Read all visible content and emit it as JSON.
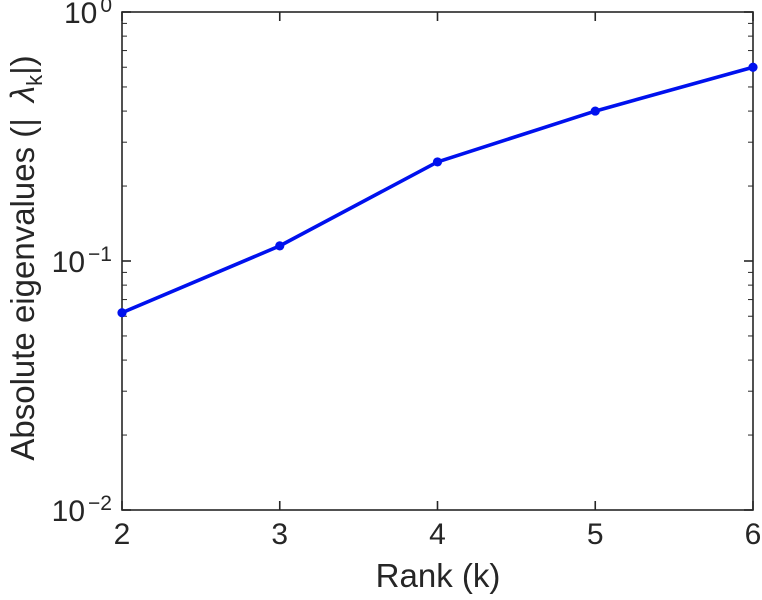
{
  "chart_data": {
    "type": "line",
    "x": [
      2,
      3,
      4,
      5,
      6
    ],
    "series": [
      {
        "name": "absolute-eigenvalues",
        "values": [
          0.062,
          0.115,
          0.25,
          0.4,
          0.6
        ]
      }
    ],
    "title": "",
    "xlabel": "Rank (k)",
    "ylabel": {
      "prefix": "Absolute eigenvalues (|",
      "symbol": "λ",
      "sub": "k",
      "suffix": "|)"
    },
    "xlim": [
      2,
      6
    ],
    "ylim": [
      0.01,
      1
    ],
    "yscale": "log",
    "xscale": "linear",
    "xticks": [
      "2",
      "3",
      "4",
      "5",
      "6"
    ],
    "ytick_base": "10",
    "ytick_exponents": [
      "0",
      "−1",
      "−2"
    ],
    "ytick_values": [
      1,
      0.1,
      0.01
    ],
    "grid": false,
    "legend": null,
    "line_color": "#0011ee",
    "axis_color": "#262626",
    "marker": "circle"
  }
}
